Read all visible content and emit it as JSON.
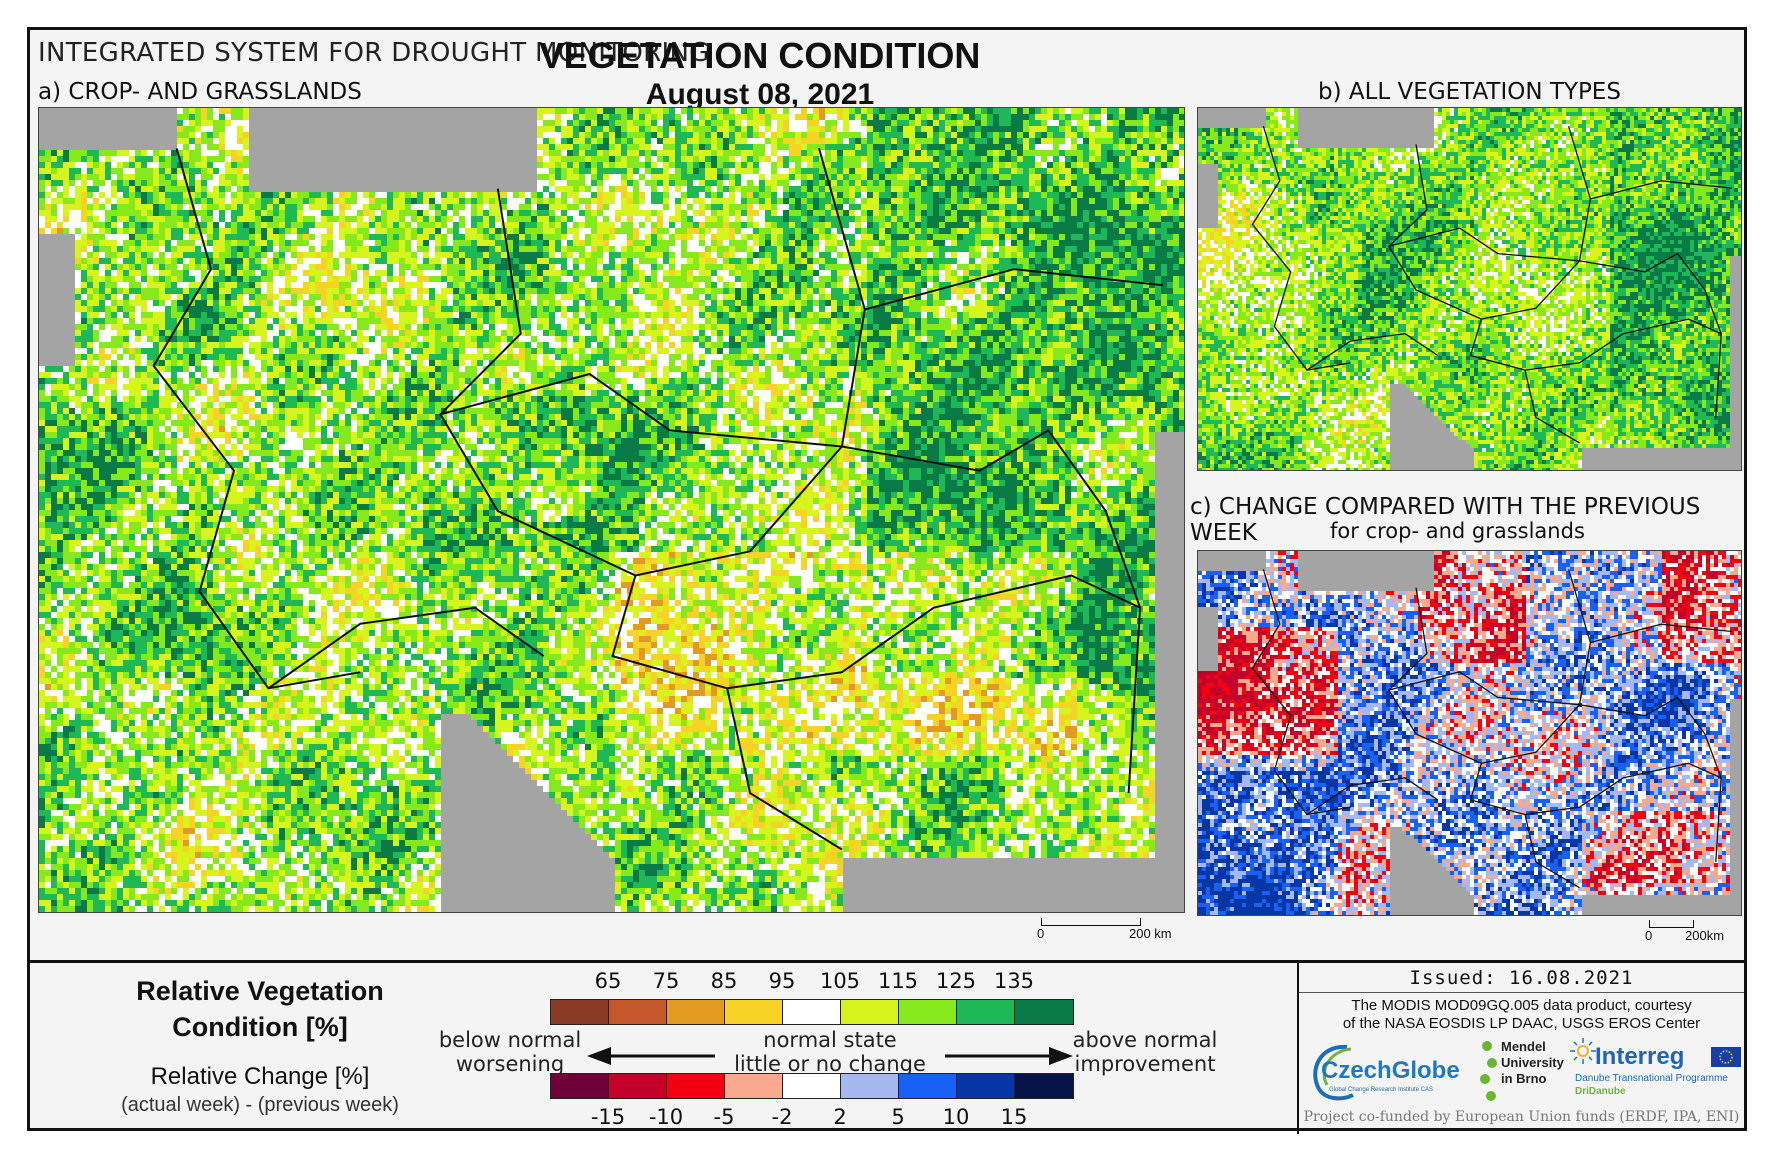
{
  "header": {
    "system_title": "INTEGRATED SYSTEM FOR DROUGHT MONITORING",
    "main_title": "VEGETATION CONDITION",
    "date": "August 08, 2021"
  },
  "panels": {
    "a_label": "a) CROP- AND GRASSLANDS",
    "b_label": "b) ALL VEGETATION TYPES",
    "c_label": "c) CHANGE COMPARED WITH THE PREVIOUS WEEK",
    "c_sublabel": "for crop- and grasslands"
  },
  "scalebars": {
    "main": {
      "zero": "0",
      "max": "200 km"
    },
    "small": {
      "zero": "0",
      "max": "200km"
    }
  },
  "legend": {
    "rvc_title_line1": "Relative Vegetation",
    "rvc_title_line2": "Condition [%]",
    "rc_title": "Relative Change [%]",
    "rc_subtitle": "(actual week) - (previous week)",
    "rvc_ticks": [
      "65",
      "75",
      "85",
      "95",
      "105",
      "115",
      "125",
      "135"
    ],
    "rvc_colors": [
      "#8b3a26",
      "#c4582a",
      "#e39a20",
      "#f7d326",
      "#ffffff",
      "#d7f51c",
      "#86e91c",
      "#1fb856",
      "#0a7a46"
    ],
    "rc_ticks": [
      "-15",
      "-10",
      "-5",
      "-2",
      "2",
      "5",
      "10",
      "15"
    ],
    "rc_colors": [
      "#6d0138",
      "#c4002a",
      "#f50010",
      "#f9a98e",
      "#ffffff",
      "#a5b8f1",
      "#1960f6",
      "#0737a6",
      "#06144a"
    ],
    "below_line1": "below normal",
    "below_line2": "worsening",
    "normal_line1": "normal state",
    "normal_line2": "little or no change",
    "above_line1": "above normal",
    "above_line2": "improvement"
  },
  "credits": {
    "issued": "Issued: 16.08.2021",
    "modis_line1": "The MODIS MOD09GQ.005 data product, courtesy",
    "modis_line2": "of the NASA EOSDIS LP DAAC, USGS EROS Center",
    "czechglobe": "CzechGlobe",
    "czechglobe_sub": "Global Change Research Institute CAS",
    "mendel_line1": "Mendel",
    "mendel_line2": "University",
    "mendel_line3": "in Brno",
    "interreg": "Interreg",
    "interreg_sub1": "Danube Transnational Programme",
    "interreg_sub2": "DriDanube",
    "cofunded": "Project co-funded by European Union funds (ERDF, IPA, ENI)"
  }
}
